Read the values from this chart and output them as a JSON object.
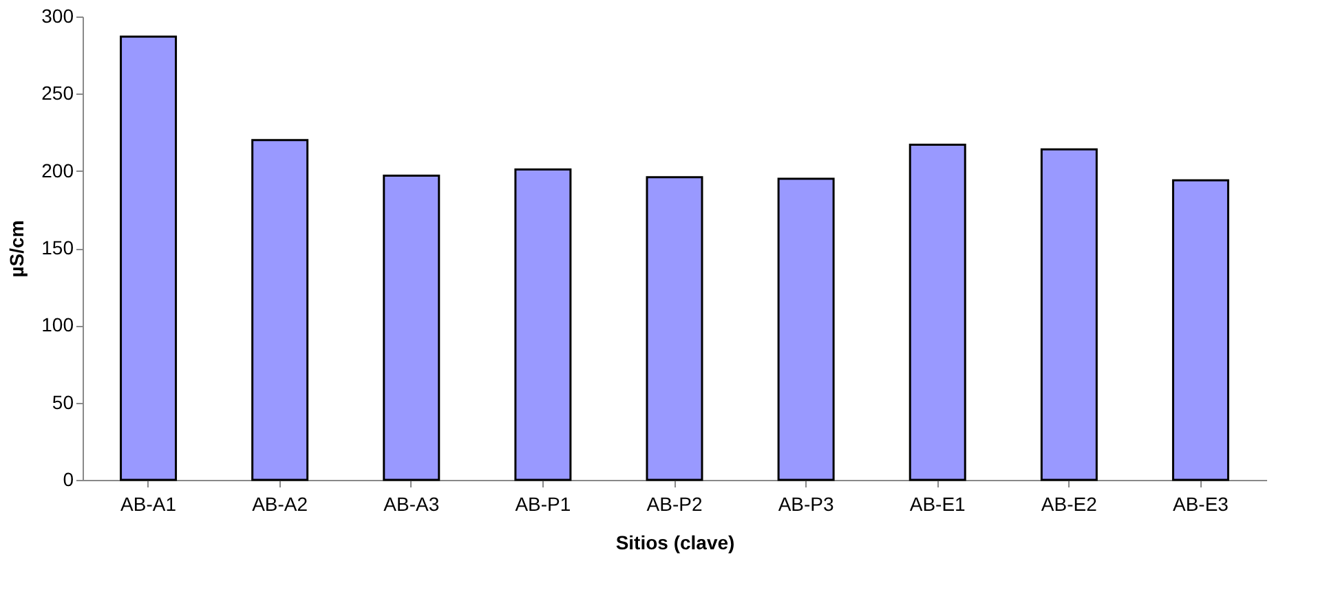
{
  "chart_data": {
    "type": "bar",
    "xlabel": "Sitios (clave)",
    "ylabel": "µS/cm",
    "categories": [
      "AB-A1",
      "AB-A2",
      "AB-A3",
      "AB-P1",
      "AB-P2",
      "AB-P3",
      "AB-E1",
      "AB-E2",
      "AB-E3"
    ],
    "values": [
      287,
      220,
      197,
      201,
      196,
      195,
      217,
      214,
      194
    ],
    "color": "#9999ff",
    "ylim": [
      0,
      300
    ],
    "yticks": [
      0,
      50,
      100,
      150,
      200,
      250,
      300
    ],
    "grid": false
  }
}
